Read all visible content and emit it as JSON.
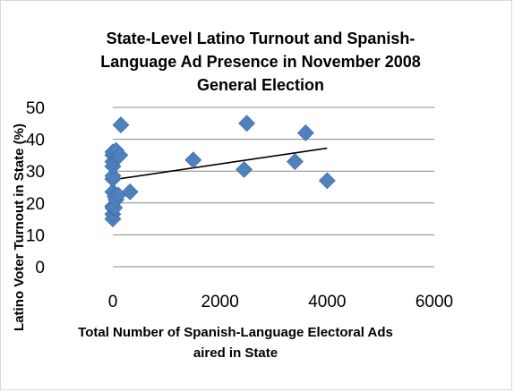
{
  "chart_data": {
    "type": "scatter",
    "title_lines": [
      "State-Level Latino Turnout and Spanish-",
      "Language Ad Presence in November 2008",
      "General Election"
    ],
    "xlabel_lines": [
      "Total Number of Spanish-Language Electoral Ads",
      "aired in State"
    ],
    "ylabel": "Latino Voter Turnout in State (%)",
    "xlim": [
      0,
      6000
    ],
    "ylim": [
      0,
      50
    ],
    "x_ticks": [
      "0",
      "2000",
      "4000",
      "6000"
    ],
    "y_ticks": [
      "0",
      "10",
      "20",
      "30",
      "40",
      "50"
    ],
    "grid": "horizontal",
    "legend": "none",
    "marker": "diamond",
    "marker_color": "#4f81bd",
    "trendline": {
      "type": "linear",
      "x": [
        0,
        4000
      ],
      "y": [
        27.3,
        37.2
      ]
    },
    "points": [
      {
        "x": 0,
        "y": 15
      },
      {
        "x": 0,
        "y": 16.5
      },
      {
        "x": 0,
        "y": 18.5
      },
      {
        "x": 0,
        "y": 19
      },
      {
        "x": 0,
        "y": 23.5
      },
      {
        "x": 0,
        "y": 27.5
      },
      {
        "x": 0,
        "y": 28.5
      },
      {
        "x": 0,
        "y": 31.5
      },
      {
        "x": 0,
        "y": 33
      },
      {
        "x": 0,
        "y": 35
      },
      {
        "x": 0,
        "y": 36
      },
      {
        "x": 30,
        "y": 18.5
      },
      {
        "x": 40,
        "y": 22
      },
      {
        "x": 60,
        "y": 21
      },
      {
        "x": 60,
        "y": 36.5
      },
      {
        "x": 100,
        "y": 22.5
      },
      {
        "x": 100,
        "y": 34.5
      },
      {
        "x": 130,
        "y": 35
      },
      {
        "x": 150,
        "y": 44.5
      },
      {
        "x": 320,
        "y": 23.5
      },
      {
        "x": 1500,
        "y": 33.5
      },
      {
        "x": 2450,
        "y": 30.5
      },
      {
        "x": 2500,
        "y": 45
      },
      {
        "x": 3400,
        "y": 33
      },
      {
        "x": 3600,
        "y": 42
      },
      {
        "x": 4000,
        "y": 27
      }
    ]
  }
}
